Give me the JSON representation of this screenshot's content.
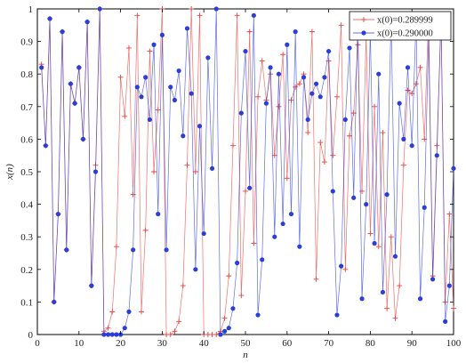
{
  "chart_data": {
    "type": "line",
    "xlabel": "n",
    "ylabel": "x(n)",
    "xlim": [
      0,
      100
    ],
    "ylim": [
      0,
      1
    ],
    "xticks": [
      0,
      10,
      20,
      30,
      40,
      50,
      60,
      70,
      80,
      90,
      100
    ],
    "yticks": [
      0,
      0.1,
      0.2,
      0.3,
      0.4,
      0.5,
      0.6,
      0.7,
      0.8,
      0.9,
      1
    ],
    "grid": false,
    "legend_position": "top-right",
    "series": [
      {
        "name": "x(0)=0.289999",
        "color": "#e8413c",
        "marker": "plus",
        "x": [
          1,
          2,
          3,
          4,
          5,
          6,
          7,
          8,
          9,
          10,
          11,
          12,
          13,
          14,
          15,
          16,
          17,
          18,
          19,
          20,
          21,
          22,
          23,
          24,
          25,
          26,
          27,
          28,
          29,
          30,
          31,
          32,
          33,
          34,
          35,
          36,
          37,
          38,
          39,
          40,
          41,
          42,
          43,
          44,
          45,
          46,
          47,
          48,
          49,
          50,
          51,
          52,
          53,
          54,
          55,
          56,
          57,
          58,
          59,
          60,
          61,
          62,
          63,
          64,
          65,
          66,
          67,
          68,
          69,
          70,
          71,
          72,
          73,
          74,
          75,
          76,
          77,
          78,
          79,
          80,
          81,
          82,
          83,
          84,
          85,
          86,
          87,
          88,
          89,
          90,
          91,
          92,
          93,
          94,
          95,
          96,
          97,
          98,
          99,
          100
        ],
        "values": [
          0.83,
          0.58,
          0.97,
          0.1,
          0.37,
          0.93,
          0.26,
          0.77,
          0.71,
          0.82,
          0.6,
          0.96,
          0.15,
          0.52,
          1.0,
          0.01,
          0.02,
          0.07,
          0.27,
          0.79,
          0.67,
          0.88,
          0.43,
          0.98,
          0.07,
          0.32,
          0.87,
          0.5,
          0.69,
          1.0,
          0.0,
          0.0,
          0.01,
          0.04,
          0.15,
          0.52,
          1.0,
          0.5,
          0.98,
          0.0,
          0.0,
          0.0,
          0.0,
          0.01,
          0.05,
          0.18,
          0.58,
          0.98,
          0.12,
          0.44,
          0.93,
          0.28,
          0.73,
          0.84,
          0.72,
          0.8,
          0.55,
          0.7,
          0.86,
          0.48,
          0.72,
          0.76,
          0.77,
          0.8,
          0.62,
          0.93,
          0.17,
          0.59,
          0.53,
          0.84,
          0.55,
          0.73,
          0.95,
          0.2,
          0.61,
          0.68,
          0.89,
          0.44,
          0.92,
          0.31,
          0.7,
          0.27,
          0.62,
          0.08,
          0.3,
          0.05,
          0.15,
          0.52,
          0.75,
          0.74,
          0.77,
          0.82,
          0.6,
          0.98,
          0.18,
          0.58,
          0.97,
          0.1,
          0.37,
          0.08
        ]
      },
      {
        "name": "x(0)=0.290000",
        "color": "#2b3fd6",
        "marker": "asterisk",
        "x": [
          1,
          2,
          3,
          4,
          5,
          6,
          7,
          8,
          9,
          10,
          11,
          12,
          13,
          14,
          15,
          16,
          17,
          18,
          19,
          20,
          21,
          22,
          23,
          24,
          25,
          26,
          27,
          28,
          29,
          30,
          31,
          32,
          33,
          34,
          35,
          36,
          37,
          38,
          39,
          40,
          41,
          42,
          43,
          44,
          45,
          46,
          47,
          48,
          49,
          50,
          51,
          52,
          53,
          54,
          55,
          56,
          57,
          58,
          59,
          60,
          61,
          62,
          63,
          64,
          65,
          66,
          67,
          68,
          69,
          70,
          71,
          72,
          73,
          74,
          75,
          76,
          77,
          78,
          79,
          80,
          81,
          82,
          83,
          84,
          85,
          86,
          87,
          88,
          89,
          90,
          91,
          92,
          93,
          94,
          95,
          96,
          97,
          98,
          99,
          100
        ],
        "values": [
          0.82,
          0.58,
          0.97,
          0.1,
          0.37,
          0.93,
          0.26,
          0.77,
          0.71,
          0.82,
          0.6,
          0.96,
          0.15,
          0.5,
          1.0,
          0.0,
          0.0,
          0.0,
          0.0,
          0.0,
          0.02,
          0.07,
          0.26,
          0.76,
          0.73,
          0.79,
          0.66,
          0.89,
          0.37,
          0.92,
          0.26,
          0.76,
          0.72,
          0.81,
          0.61,
          0.94,
          0.74,
          0.2,
          0.64,
          0.31,
          0.85,
          0.51,
          1.0,
          0.0,
          0.01,
          0.02,
          0.08,
          0.22,
          0.68,
          0.87,
          0.45,
          0.98,
          0.06,
          0.23,
          0.71,
          0.82,
          0.3,
          0.8,
          0.34,
          0.89,
          0.37,
          0.93,
          0.27,
          0.79,
          0.66,
          0.74,
          0.77,
          0.73,
          0.79,
          0.87,
          0.44,
          0.06,
          0.21,
          0.66,
          0.88,
          0.42,
          0.97,
          0.11,
          0.4,
          0.93,
          0.28,
          0.8,
          0.13,
          0.43,
          0.97,
          0.24,
          0.71,
          0.6,
          0.82,
          0.58,
          0.97,
          0.11,
          0.39,
          0.92,
          0.17,
          0.55,
          0.98,
          0.04,
          0.15,
          0.51
        ]
      }
    ]
  }
}
